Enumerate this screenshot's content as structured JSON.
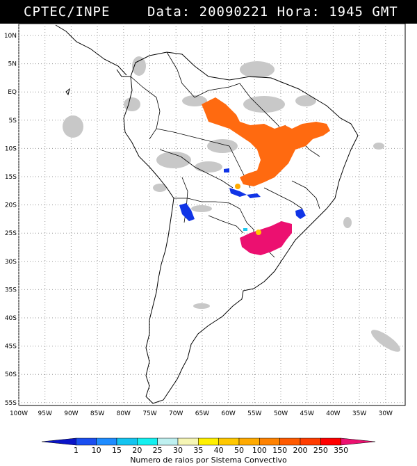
{
  "header": {
    "source": "CPTEC/INPE",
    "datetime": "Data: 20090221 Hora: 1945 GMT"
  },
  "map": {
    "lat_labels": [
      "10N",
      "5N",
      "EQ",
      "5S",
      "10S",
      "15S",
      "20S",
      "25S",
      "30S",
      "35S",
      "40S",
      "45S",
      "50S",
      "55S"
    ],
    "lon_labels": [
      "100W",
      "95W",
      "90W",
      "85W",
      "80W",
      "75W",
      "70W",
      "65W",
      "60W",
      "55W",
      "50W",
      "45W",
      "40W",
      "35W",
      "30W"
    ],
    "land_color": "#ffffff",
    "border_color": "#000000",
    "cloud_color": "#c8c8c8",
    "lightning_regions": [
      {
        "name": "amazon-orange",
        "level": "200",
        "color": "#ff6a10"
      },
      {
        "name": "south-magenta",
        "level": "350",
        "color": "#ec1070"
      },
      {
        "name": "central-blue",
        "level": "1",
        "color": "#1034e6"
      }
    ]
  },
  "scale": {
    "values": [
      "1",
      "10",
      "15",
      "20",
      "25",
      "30",
      "35",
      "40",
      "50",
      "100",
      "150",
      "200",
      "250",
      "350"
    ],
    "colors": [
      "#0a14c8",
      "#1a4ef0",
      "#1e8cff",
      "#14c4f0",
      "#14f0f0",
      "#bef0f0",
      "#f5f5b4",
      "#fff000",
      "#ffc800",
      "#ffaa00",
      "#ff8200",
      "#ff5a00",
      "#ff3c00",
      "#ff0000",
      "#ec1070"
    ],
    "label": "Numero de raios por Sistema Convectivo"
  }
}
